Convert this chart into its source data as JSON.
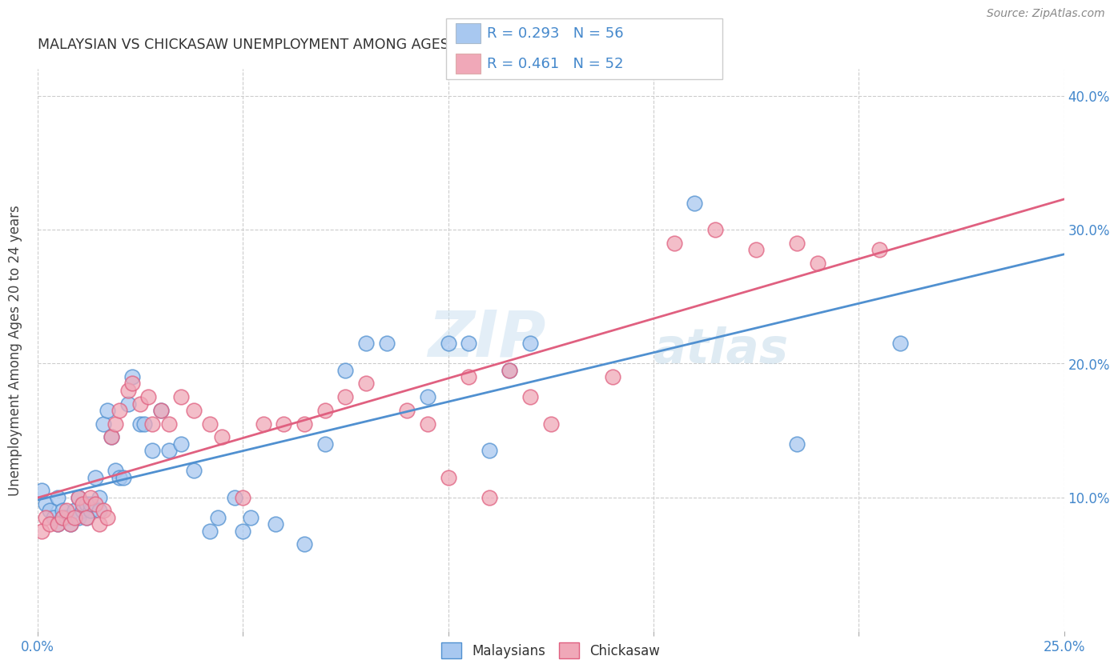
{
  "title": "MALAYSIAN VS CHICKASAW UNEMPLOYMENT AMONG AGES 20 TO 24 YEARS CORRELATION CHART",
  "source": "Source: ZipAtlas.com",
  "ylabel": "Unemployment Among Ages 20 to 24 years",
  "xlim": [
    0.0,
    0.25
  ],
  "ylim": [
    0.0,
    0.42
  ],
  "xticklabels": [
    "0.0%",
    "",
    "",
    "",
    "",
    "25.0%"
  ],
  "xticks": [
    0.0,
    0.05,
    0.1,
    0.15,
    0.2,
    0.25
  ],
  "yticklabels": [
    "10.0%",
    "20.0%",
    "30.0%",
    "40.0%"
  ],
  "yticks": [
    0.1,
    0.2,
    0.3,
    0.4
  ],
  "malaysian_color": "#a8c8f0",
  "chickasaw_color": "#f0a8b8",
  "malaysian_line_color": "#5090d0",
  "chickasaw_line_color": "#e06080",
  "malaysian_R": 0.293,
  "malaysian_N": 56,
  "chickasaw_R": 0.461,
  "chickasaw_N": 52,
  "legend_label_1": "Malaysians",
  "legend_label_2": "Chickasaw",
  "watermark_1": "ZIP",
  "watermark_2": "atlas",
  "malaysian_x": [
    0.001,
    0.002,
    0.003,
    0.004,
    0.005,
    0.005,
    0.006,
    0.006,
    0.007,
    0.008,
    0.009,
    0.01,
    0.01,
    0.011,
    0.012,
    0.012,
    0.013,
    0.013,
    0.014,
    0.015,
    0.015,
    0.016,
    0.017,
    0.018,
    0.019,
    0.02,
    0.021,
    0.022,
    0.023,
    0.025,
    0.026,
    0.028,
    0.03,
    0.032,
    0.035,
    0.038,
    0.042,
    0.044,
    0.048,
    0.05,
    0.052,
    0.058,
    0.065,
    0.07,
    0.075,
    0.08,
    0.085,
    0.095,
    0.1,
    0.105,
    0.11,
    0.115,
    0.12,
    0.16,
    0.185,
    0.21
  ],
  "malaysian_y": [
    0.105,
    0.095,
    0.09,
    0.085,
    0.1,
    0.08,
    0.085,
    0.09,
    0.085,
    0.08,
    0.09,
    0.085,
    0.1,
    0.09,
    0.085,
    0.095,
    0.09,
    0.095,
    0.115,
    0.1,
    0.09,
    0.155,
    0.165,
    0.145,
    0.12,
    0.115,
    0.115,
    0.17,
    0.19,
    0.155,
    0.155,
    0.135,
    0.165,
    0.135,
    0.14,
    0.12,
    0.075,
    0.085,
    0.1,
    0.075,
    0.085,
    0.08,
    0.065,
    0.14,
    0.195,
    0.215,
    0.215,
    0.175,
    0.215,
    0.215,
    0.135,
    0.195,
    0.215,
    0.32,
    0.14,
    0.215
  ],
  "chickasaw_x": [
    0.001,
    0.002,
    0.003,
    0.005,
    0.006,
    0.007,
    0.008,
    0.009,
    0.01,
    0.011,
    0.012,
    0.013,
    0.014,
    0.015,
    0.016,
    0.017,
    0.018,
    0.019,
    0.02,
    0.022,
    0.023,
    0.025,
    0.027,
    0.028,
    0.03,
    0.032,
    0.035,
    0.038,
    0.042,
    0.045,
    0.05,
    0.055,
    0.06,
    0.065,
    0.07,
    0.075,
    0.08,
    0.09,
    0.095,
    0.1,
    0.105,
    0.11,
    0.115,
    0.12,
    0.125,
    0.14,
    0.155,
    0.165,
    0.175,
    0.185,
    0.19,
    0.205
  ],
  "chickasaw_y": [
    0.075,
    0.085,
    0.08,
    0.08,
    0.085,
    0.09,
    0.08,
    0.085,
    0.1,
    0.095,
    0.085,
    0.1,
    0.095,
    0.08,
    0.09,
    0.085,
    0.145,
    0.155,
    0.165,
    0.18,
    0.185,
    0.17,
    0.175,
    0.155,
    0.165,
    0.155,
    0.175,
    0.165,
    0.155,
    0.145,
    0.1,
    0.155,
    0.155,
    0.155,
    0.165,
    0.175,
    0.185,
    0.165,
    0.155,
    0.115,
    0.19,
    0.1,
    0.195,
    0.175,
    0.155,
    0.19,
    0.29,
    0.3,
    0.285,
    0.29,
    0.275,
    0.285
  ]
}
